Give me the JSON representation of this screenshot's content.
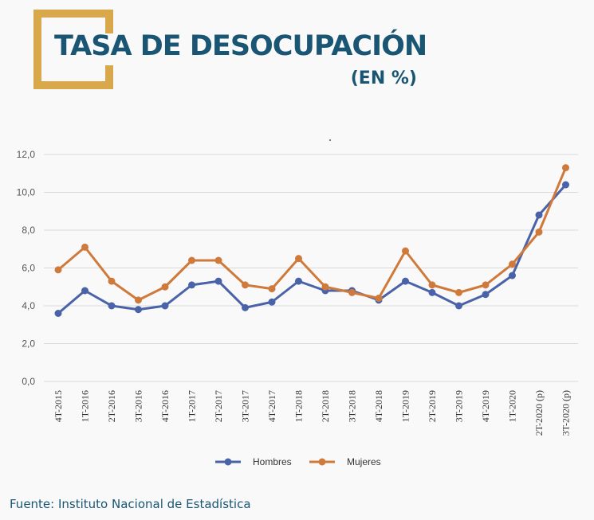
{
  "header": {
    "title": "TASA DE DESOCUPACIÓN",
    "subtitle": "(EN %)"
  },
  "footer": {
    "source": "Fuente: Instituto Nacional de Estadística"
  },
  "colors": {
    "hombres": "#4a63a8",
    "mujeres": "#cf7a3a",
    "gold": "#d8a84a",
    "navy": "#1a5673",
    "grid": "#d9d9d9",
    "axis_text": "#555555"
  },
  "chart_data": {
    "type": "line",
    "title": "",
    "xlabel": "",
    "ylabel": "",
    "ylim": [
      0,
      12
    ],
    "yticks": [
      0,
      2,
      4,
      6,
      8,
      10,
      12
    ],
    "ytick_labels": [
      "0,0",
      "2,0",
      "4,0",
      "6,0",
      "8,0",
      "10,0",
      "12,0"
    ],
    "legend_position": "bottom",
    "categories": [
      "4T-2015",
      "1T-2016",
      "2T-2016",
      "3T-2016",
      "4T-2016",
      "1T-2017",
      "2T-2017",
      "3T-2017",
      "4T-2017",
      "1T-2018",
      "2T-2018",
      "3T-2018",
      "4T-2018",
      "1T-2019",
      "2T-2019",
      "3T-2019",
      "4T-2019",
      "1T-2020",
      "2T-2020 (p)",
      "3T-2020 (p)"
    ],
    "series": [
      {
        "name": "Hombres",
        "color": "#4a63a8",
        "values": [
          3.6,
          4.8,
          4.0,
          3.8,
          4.0,
          5.1,
          5.3,
          3.9,
          4.2,
          5.3,
          4.8,
          4.8,
          4.3,
          5.3,
          4.7,
          4.0,
          4.6,
          5.6,
          8.8,
          10.4
        ]
      },
      {
        "name": "Mujeres",
        "color": "#cf7a3a",
        "values": [
          5.9,
          7.1,
          5.3,
          4.3,
          5.0,
          6.4,
          6.4,
          5.1,
          4.9,
          6.5,
          5.0,
          4.7,
          4.4,
          6.9,
          5.1,
          4.7,
          5.1,
          6.2,
          7.9,
          11.3
        ]
      }
    ]
  }
}
